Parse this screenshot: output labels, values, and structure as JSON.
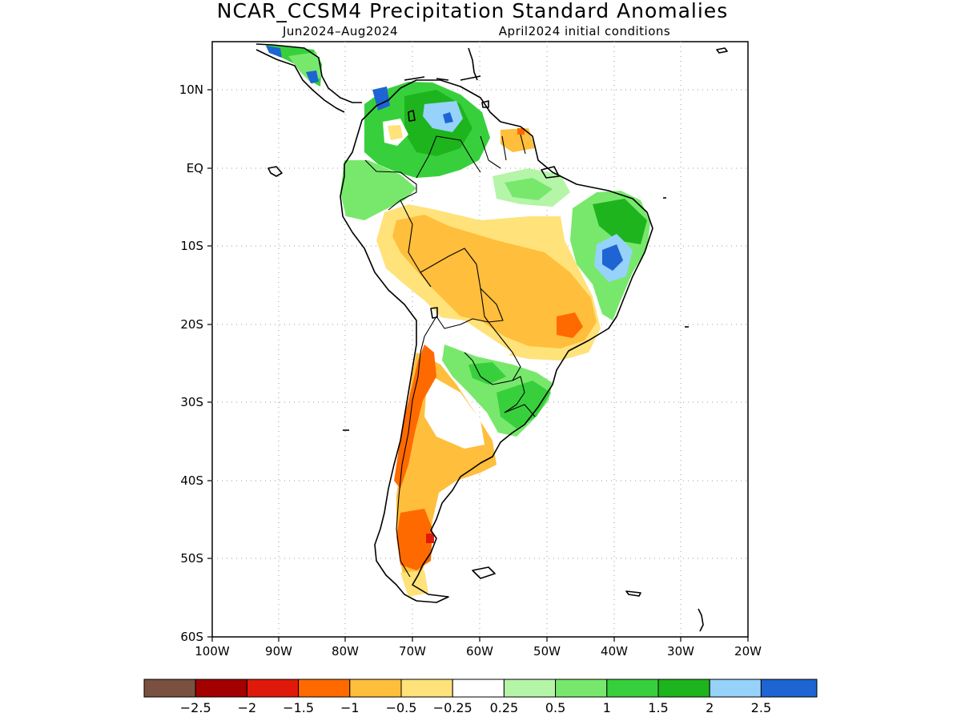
{
  "header": {
    "title": "NCAR_CCSM4 Precipitation Standard Anomalies",
    "period": "Jun2024–Aug2024",
    "init": "April2024 initial conditions"
  },
  "map": {
    "region": "South America",
    "lat_ticks": [
      "10N",
      "EQ",
      "10S",
      "20S",
      "30S",
      "40S",
      "50S",
      "60S"
    ],
    "lon_ticks": [
      "100W",
      "90W",
      "80W",
      "70W",
      "60W",
      "50W",
      "40W",
      "30W",
      "20W"
    ],
    "lon_range": [
      -100,
      -20
    ],
    "lat_range": [
      -60,
      16
    ],
    "grid": "dotted"
  },
  "colorbar": {
    "colors": [
      "#7a5040",
      "#a30000",
      "#e01a0a",
      "#ff6a00",
      "#ffbe3c",
      "#ffe27a",
      "#ffffff",
      "#b4f5a8",
      "#78e86c",
      "#37d03c",
      "#1eb41e",
      "#96d2fa",
      "#1e64d2"
    ],
    "labels": [
      "−2.5",
      "−2",
      "−1.5",
      "−1",
      "−0.5",
      "−0.25",
      "0.25",
      "0.5",
      "1",
      "1.5",
      "2",
      "2.5"
    ]
  }
}
